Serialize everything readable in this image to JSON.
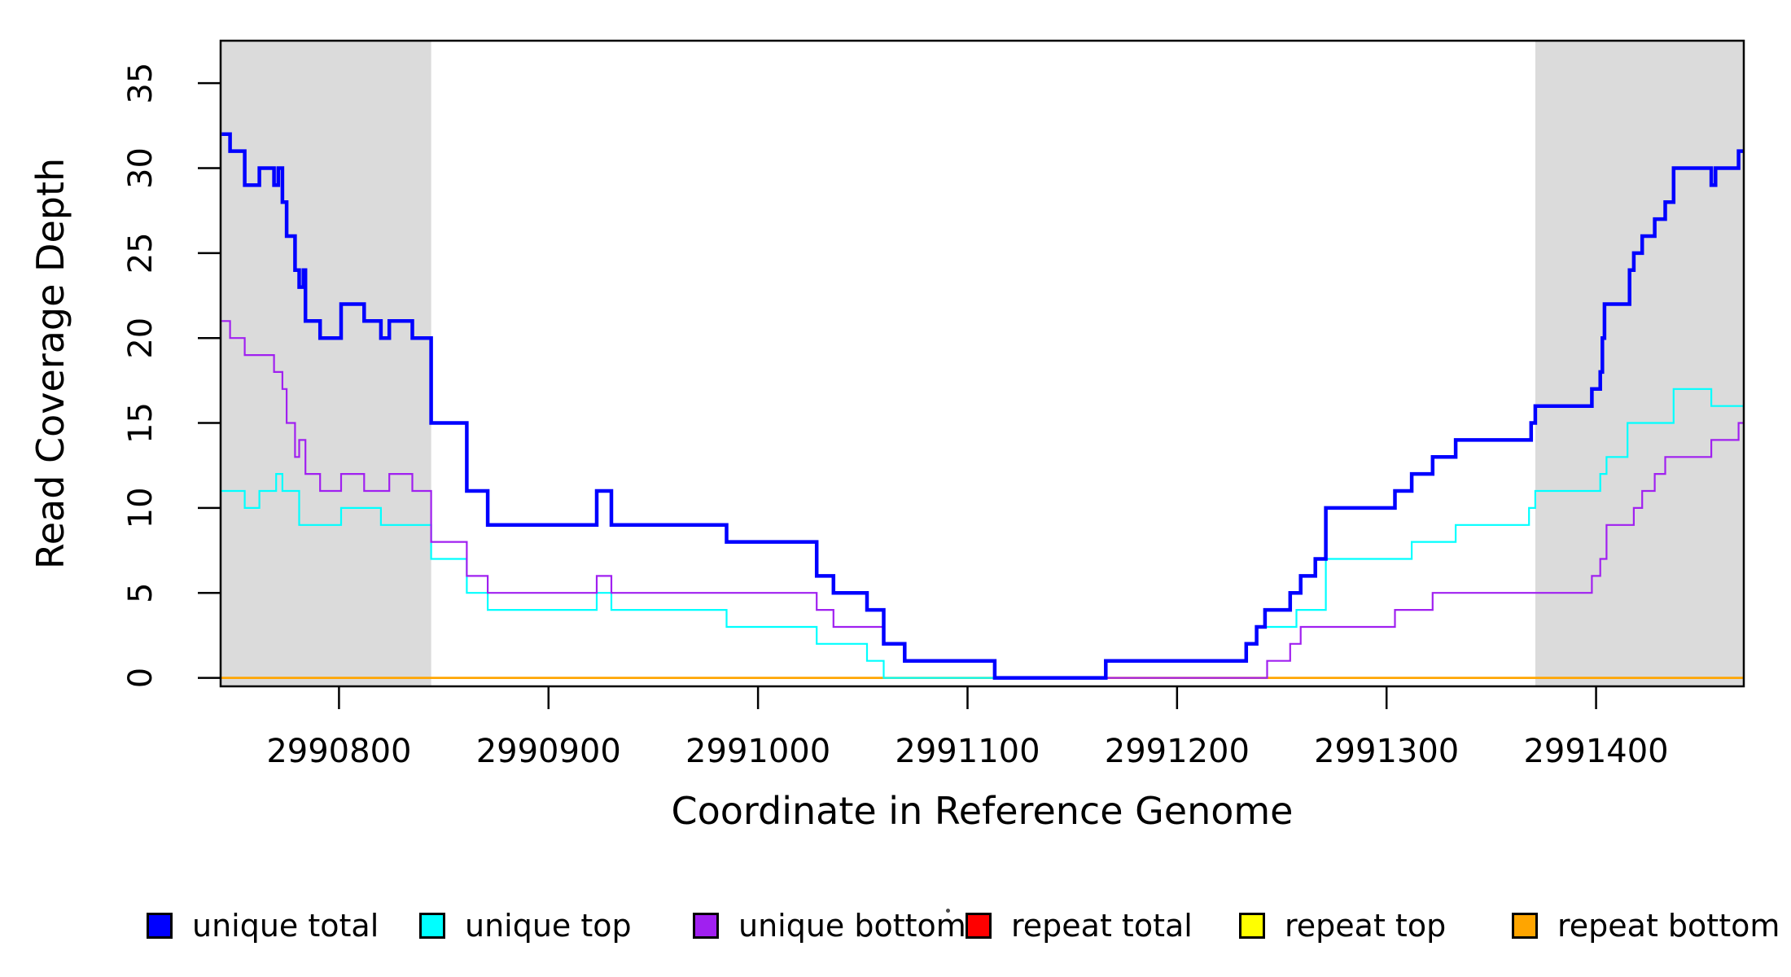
{
  "chart_data": {
    "type": "line",
    "subtype": "step-coverage",
    "title": "",
    "xlabel": "Coordinate in Reference Genome",
    "ylabel": "Read Coverage Depth",
    "xlim": [
      2990743.5,
      2991470.5
    ],
    "ylim": [
      -0.5,
      37.5
    ],
    "grid": false,
    "x_ticks": [
      2990800,
      2990900,
      2991000,
      2991100,
      2991200,
      2991300,
      2991400
    ],
    "y_ticks": [
      0,
      5,
      10,
      15,
      20,
      25,
      30,
      35
    ],
    "axis_color": "#000000",
    "shaded_regions": [
      {
        "name": "left-repeat-flank",
        "from": 2990743.5,
        "to": 2990844,
        "color": "#DBDBDB"
      },
      {
        "name": "right-repeat-flank",
        "from": 2991371,
        "to": 2991470.5,
        "color": "#DBDBDB"
      }
    ],
    "series": [
      {
        "name": "repeat total",
        "color": "#FF0000",
        "width": 2.2,
        "points": [
          [
            2990743.5,
            0
          ]
        ]
      },
      {
        "name": "repeat top",
        "color": "#FFFF00",
        "width": 2.2,
        "points": [
          [
            2990743.5,
            0
          ]
        ]
      },
      {
        "name": "repeat bottom",
        "color": "#FFA500",
        "width": 2.6,
        "points": [
          [
            2990743.5,
            0
          ]
        ]
      },
      {
        "name": "unique top",
        "color": "#00FFFF",
        "width": 2.2,
        "points": [
          [
            2990744,
            11
          ],
          [
            2990755,
            10
          ],
          [
            2990762,
            11
          ],
          [
            2990770,
            12
          ],
          [
            2990773,
            11
          ],
          [
            2990781,
            9
          ],
          [
            2990801,
            10
          ],
          [
            2990820,
            9
          ],
          [
            2990844,
            7
          ],
          [
            2990861,
            5
          ],
          [
            2990871,
            4
          ],
          [
            2990923,
            5
          ],
          [
            2990930,
            4
          ],
          [
            2990985,
            3
          ],
          [
            2991028,
            2
          ],
          [
            2991052,
            1
          ],
          [
            2991060,
            0
          ],
          [
            2991166,
            1
          ],
          [
            2991233,
            2
          ],
          [
            2991238,
            3
          ],
          [
            2991257,
            4
          ],
          [
            2991271,
            7
          ],
          [
            2991312,
            8
          ],
          [
            2991333,
            9
          ],
          [
            2991368,
            10
          ],
          [
            2991371,
            11
          ],
          [
            2991402,
            12
          ],
          [
            2991405,
            13
          ],
          [
            2991415,
            15
          ],
          [
            2991437,
            17
          ],
          [
            2991455,
            16
          ]
        ]
      },
      {
        "name": "unique bottom",
        "color": "#A020F0",
        "width": 2.2,
        "points": [
          [
            2990744,
            21
          ],
          [
            2990748,
            20
          ],
          [
            2990755,
            19
          ],
          [
            2990769,
            18
          ],
          [
            2990773,
            17
          ],
          [
            2990775,
            15
          ],
          [
            2990779,
            13
          ],
          [
            2990781,
            14
          ],
          [
            2990784,
            12
          ],
          [
            2990791,
            11
          ],
          [
            2990801,
            12
          ],
          [
            2990812,
            11
          ],
          [
            2990824,
            12
          ],
          [
            2990835,
            11
          ],
          [
            2990844,
            8
          ],
          [
            2990861,
            6
          ],
          [
            2990871,
            5
          ],
          [
            2990923,
            6
          ],
          [
            2990930,
            5
          ],
          [
            2991028,
            4
          ],
          [
            2991036,
            3
          ],
          [
            2991060,
            2
          ],
          [
            2991070,
            1
          ],
          [
            2991113,
            0
          ],
          [
            2991243,
            1
          ],
          [
            2991254,
            2
          ],
          [
            2991259,
            3
          ],
          [
            2991304,
            4
          ],
          [
            2991322,
            5
          ],
          [
            2991398,
            6
          ],
          [
            2991402,
            7
          ],
          [
            2991405,
            9
          ],
          [
            2991418,
            10
          ],
          [
            2991422,
            11
          ],
          [
            2991428,
            12
          ],
          [
            2991433,
            13
          ],
          [
            2991455,
            14
          ],
          [
            2991468,
            15
          ]
        ]
      },
      {
        "name": "unique total",
        "color": "#0000FF",
        "width": 4.5,
        "points": [
          [
            2990744,
            32
          ],
          [
            2990748,
            31
          ],
          [
            2990755,
            29
          ],
          [
            2990762,
            30
          ],
          [
            2990769,
            29
          ],
          [
            2990771,
            30
          ],
          [
            2990773,
            28
          ],
          [
            2990775,
            26
          ],
          [
            2990779,
            24
          ],
          [
            2990781,
            23
          ],
          [
            2990783,
            24
          ],
          [
            2990784,
            21
          ],
          [
            2990791,
            20
          ],
          [
            2990801,
            22
          ],
          [
            2990812,
            21
          ],
          [
            2990820,
            20
          ],
          [
            2990824,
            21
          ],
          [
            2990835,
            20
          ],
          [
            2990844,
            15
          ],
          [
            2990861,
            11
          ],
          [
            2990871,
            9
          ],
          [
            2990923,
            11
          ],
          [
            2990930,
            9
          ],
          [
            2990985,
            8
          ],
          [
            2991028,
            6
          ],
          [
            2991036,
            5
          ],
          [
            2991052,
            4
          ],
          [
            2991060,
            2
          ],
          [
            2991070,
            1
          ],
          [
            2991113,
            0
          ],
          [
            2991166,
            1
          ],
          [
            2991233,
            2
          ],
          [
            2991238,
            3
          ],
          [
            2991242,
            4
          ],
          [
            2991254,
            5
          ],
          [
            2991259,
            6
          ],
          [
            2991266,
            7
          ],
          [
            2991271,
            10
          ],
          [
            2991304,
            11
          ],
          [
            2991312,
            12
          ],
          [
            2991322,
            13
          ],
          [
            2991333,
            14
          ],
          [
            2991369,
            15
          ],
          [
            2991371,
            16
          ],
          [
            2991398,
            17
          ],
          [
            2991402,
            18
          ],
          [
            2991403,
            20
          ],
          [
            2991404,
            22
          ],
          [
            2991416,
            24
          ],
          [
            2991418,
            25
          ],
          [
            2991422,
            26
          ],
          [
            2991428,
            27
          ],
          [
            2991433,
            28
          ],
          [
            2991437,
            30
          ],
          [
            2991455,
            29
          ],
          [
            2991457,
            30
          ],
          [
            2991468,
            31
          ]
        ]
      }
    ],
    "legend": {
      "position": "bottom",
      "items": [
        {
          "label": "unique total",
          "color": "#0000FF"
        },
        {
          "label": "unique top",
          "color": "#00FFFF"
        },
        {
          "label": "unique bottom",
          "color": "#A020F0"
        },
        {
          "label": "repeat total",
          "color": "#FF0000"
        },
        {
          "label": "repeat top",
          "color": "#FFFF00"
        },
        {
          "label": "repeat bottom",
          "color": "#FFA500"
        }
      ]
    }
  }
}
